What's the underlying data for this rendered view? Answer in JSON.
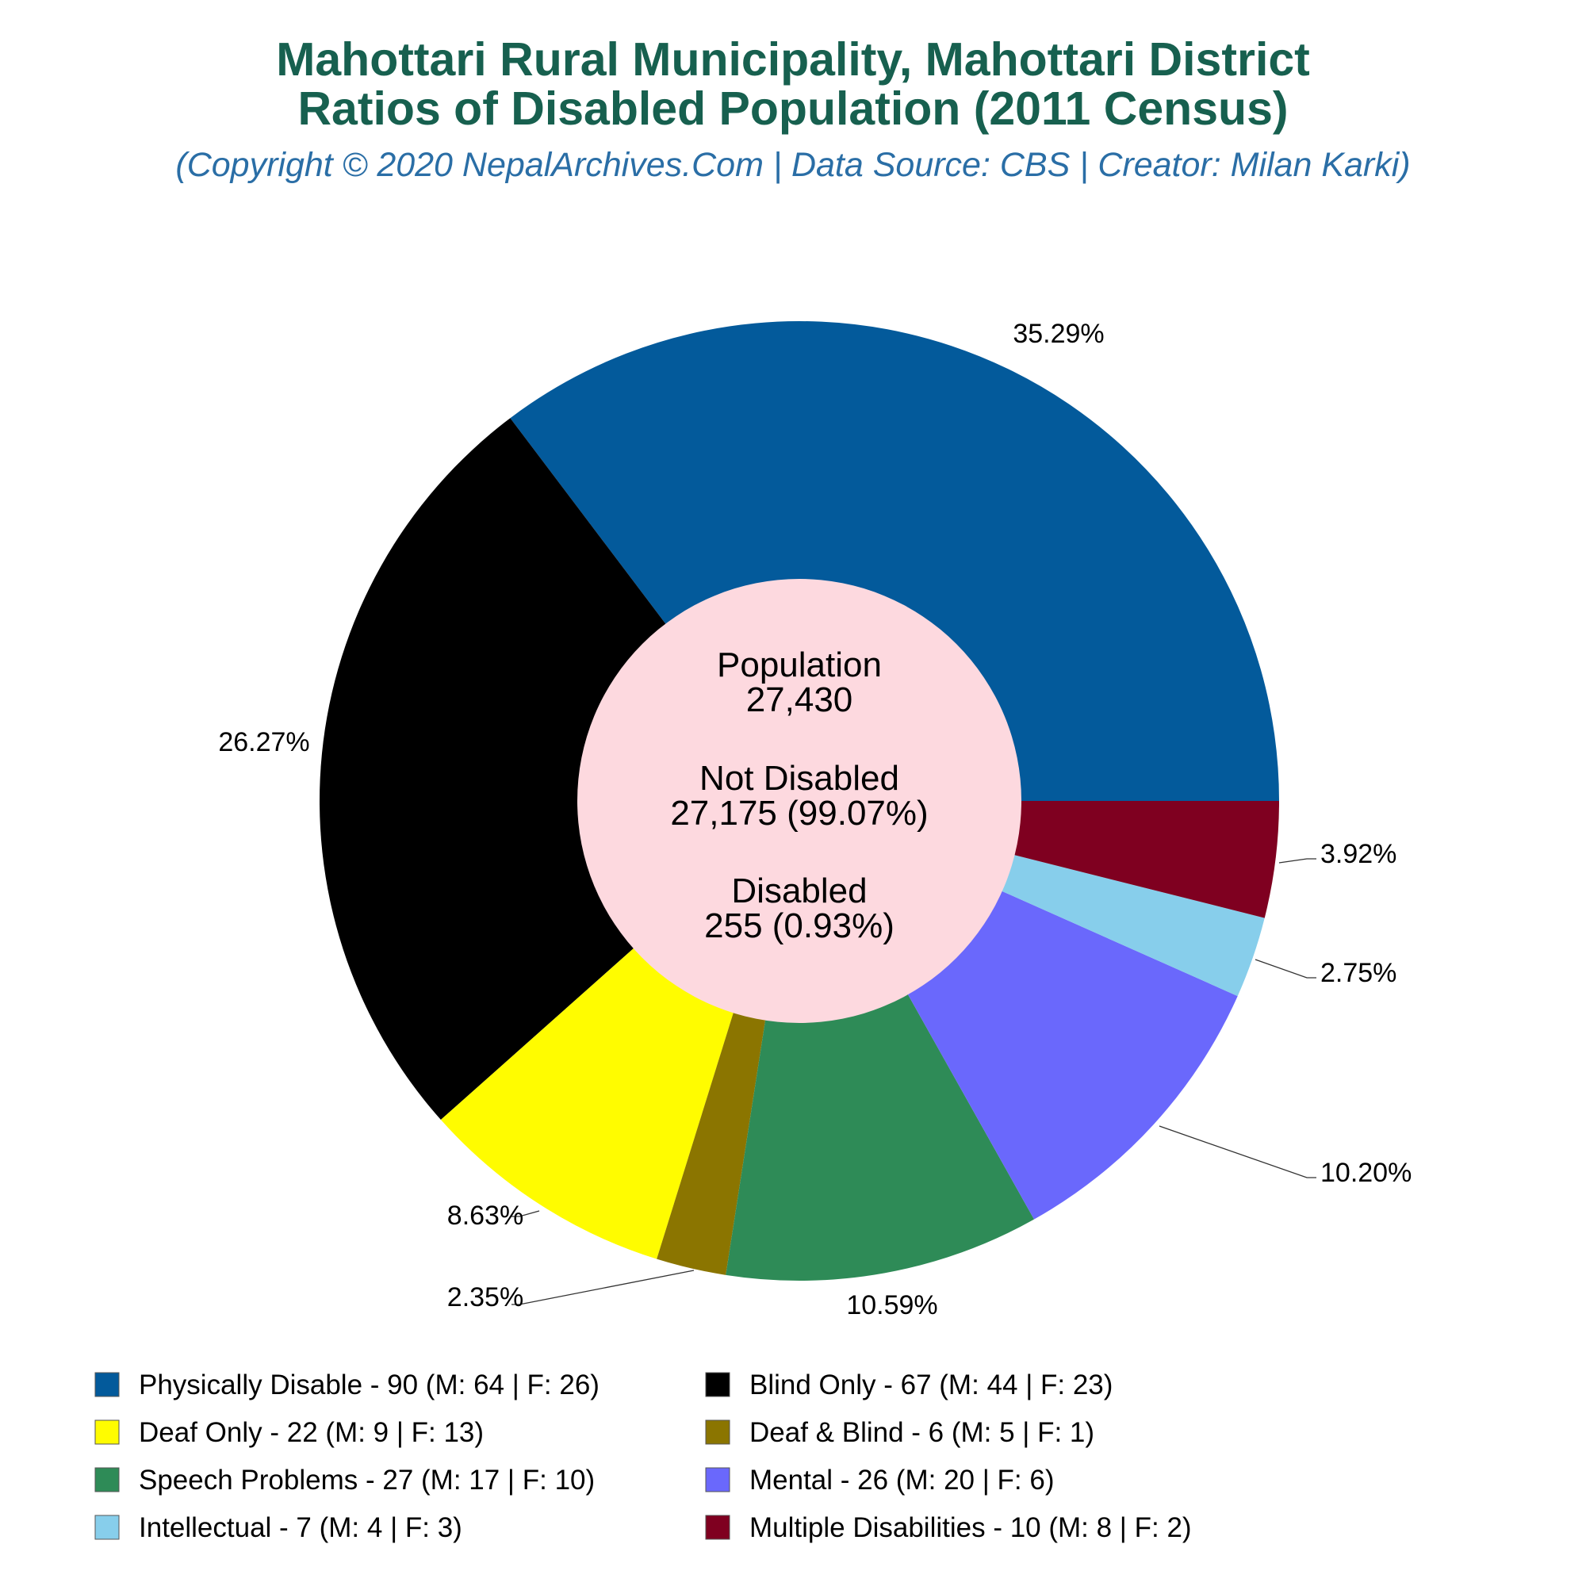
{
  "chart_data": {
    "type": "pie",
    "title_lines": [
      "Mahottari Rural Municipality, Mahottari District",
      "Ratios of Disabled Population (2011 Census)"
    ],
    "subtitle": "(Copyright © 2020 NepalArchives.Com | Data Source: CBS | Creator: Milan Karki)",
    "center": {
      "population_label": "Population",
      "population_value": "27,430",
      "not_disabled_label": "Not Disabled",
      "not_disabled_value": "27,175 (99.07%)",
      "disabled_label": "Disabled",
      "disabled_value": "255 (0.93%)"
    },
    "slices": [
      {
        "value": 90,
        "percent": 35.29,
        "label": "35.29%",
        "color": "#035a9b",
        "legend": "Physically Disable - 90 (M: 64 | F: 26)"
      },
      {
        "value": 67,
        "percent": 26.27,
        "label": "26.27%",
        "color": "#000000",
        "legend": "Blind Only - 67 (M: 44 | F: 23)"
      },
      {
        "value": 22,
        "percent": 8.63,
        "label": "8.63%",
        "color": "#fffc00",
        "legend": "Deaf Only - 22 (M: 9 | F: 13)"
      },
      {
        "value": 6,
        "percent": 2.35,
        "label": "2.35%",
        "color": "#8b7500",
        "legend": "Deaf & Blind - 6 (M: 5 | F: 1)"
      },
      {
        "value": 27,
        "percent": 10.59,
        "label": "10.59%",
        "color": "#2e8b57",
        "legend": "Speech Problems - 27 (M: 17 | F: 10)"
      },
      {
        "value": 26,
        "percent": 10.2,
        "label": "10.20%",
        "color": "#6a68fc",
        "legend": "Mental - 26 (M: 20 | F: 6)"
      },
      {
        "value": 7,
        "percent": 2.75,
        "label": "2.75%",
        "color": "#87ceeb",
        "legend": "Intellectual - 7 (M: 4 | F: 3)"
      },
      {
        "value": 10,
        "percent": 3.92,
        "label": "3.92%",
        "color": "#7f0020",
        "legend": "Multiple Disabilities - 10 (M: 8 | F: 2)"
      }
    ],
    "legend_order": [
      0,
      1,
      2,
      3,
      4,
      5,
      6,
      7
    ],
    "center_fill": "#fdd9df",
    "start": "3 o'clock",
    "direction": "counterclockwise",
    "legend_position": "bottom"
  }
}
